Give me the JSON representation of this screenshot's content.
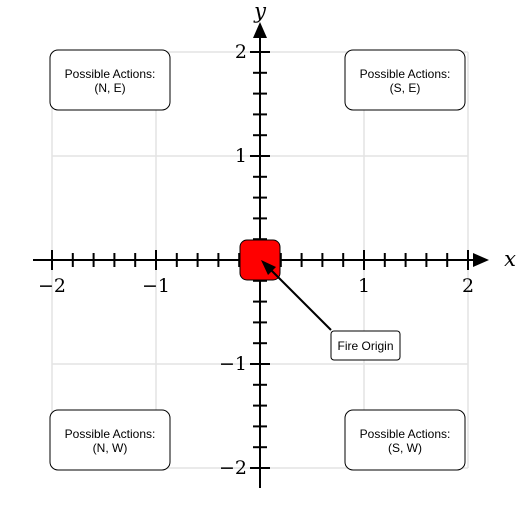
{
  "axes": {
    "x_label": "x",
    "y_label": "y",
    "x_range": [
      -2,
      2
    ],
    "y_range": [
      -2,
      2
    ],
    "major_step": 1,
    "minor_step": 0.2,
    "grid": true,
    "x_tick_labels": [
      "−2",
      "−1",
      "1",
      "2"
    ],
    "y_tick_labels": [
      "2",
      "1",
      "−1",
      "−2"
    ]
  },
  "boxes": [
    {
      "id": "nw",
      "line1": "Possible Actions:",
      "line2": "(N, E)",
      "center": [
        -1,
        1.75
      ]
    },
    {
      "id": "ne",
      "line1": "Possible Actions:",
      "line2": "(S, E)",
      "center": [
        1.4,
        1.75
      ]
    },
    {
      "id": "sw",
      "line1": "Possible Actions:",
      "line2": "(N, W)",
      "center": [
        -1,
        -1.75
      ]
    },
    {
      "id": "se",
      "line1": "Possible Actions:",
      "line2": "(S, W)",
      "center": [
        1.4,
        -1.75
      ]
    }
  ],
  "fire": {
    "label": "Fire Origin",
    "position": [
      0,
      0
    ],
    "label_position": [
      1,
      -0.82
    ],
    "color": "#ff0000"
  }
}
